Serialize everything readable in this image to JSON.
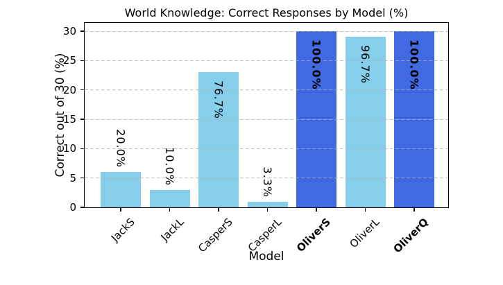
{
  "chart_data": {
    "type": "bar",
    "title": "World Knowledge: Correct Responses by Model (%)",
    "xlabel": "Model",
    "ylabel": "Correct out of 30 (%)",
    "categories": [
      "JackS",
      "JackL",
      "CasperS",
      "CasperL",
      "OliverS",
      "OliverL",
      "OliverQ"
    ],
    "values": [
      6,
      3,
      23,
      1,
      30,
      29,
      30
    ],
    "value_labels": [
      "20.0%",
      "10.0%",
      "76.7%",
      "3.3%",
      "100.0%",
      "96.7%",
      "100.0%"
    ],
    "bar_colors": [
      "#87CEEB",
      "#87CEEB",
      "#87CEEB",
      "#87CEEB",
      "#4169E1",
      "#87CEEB",
      "#4169E1"
    ],
    "emphasized": [
      false,
      false,
      false,
      false,
      true,
      false,
      true
    ],
    "label_position": [
      "above",
      "above",
      "inside",
      "above",
      "inside",
      "inside",
      "inside"
    ],
    "yticks": [
      0,
      5,
      10,
      15,
      20,
      25,
      30
    ],
    "ytick_labels": [
      "0",
      "5",
      "10",
      "15",
      "20",
      "25",
      "30"
    ],
    "ylim": [
      0,
      31.4
    ],
    "grid": "horizontal dashed, drawn over bars",
    "legend": "none",
    "colors": {
      "bar_light": "#87CEEB",
      "bar_dark": "#4169E1",
      "grid": "#b0b0b0",
      "axis": "#000000",
      "background": "#ffffff"
    }
  }
}
